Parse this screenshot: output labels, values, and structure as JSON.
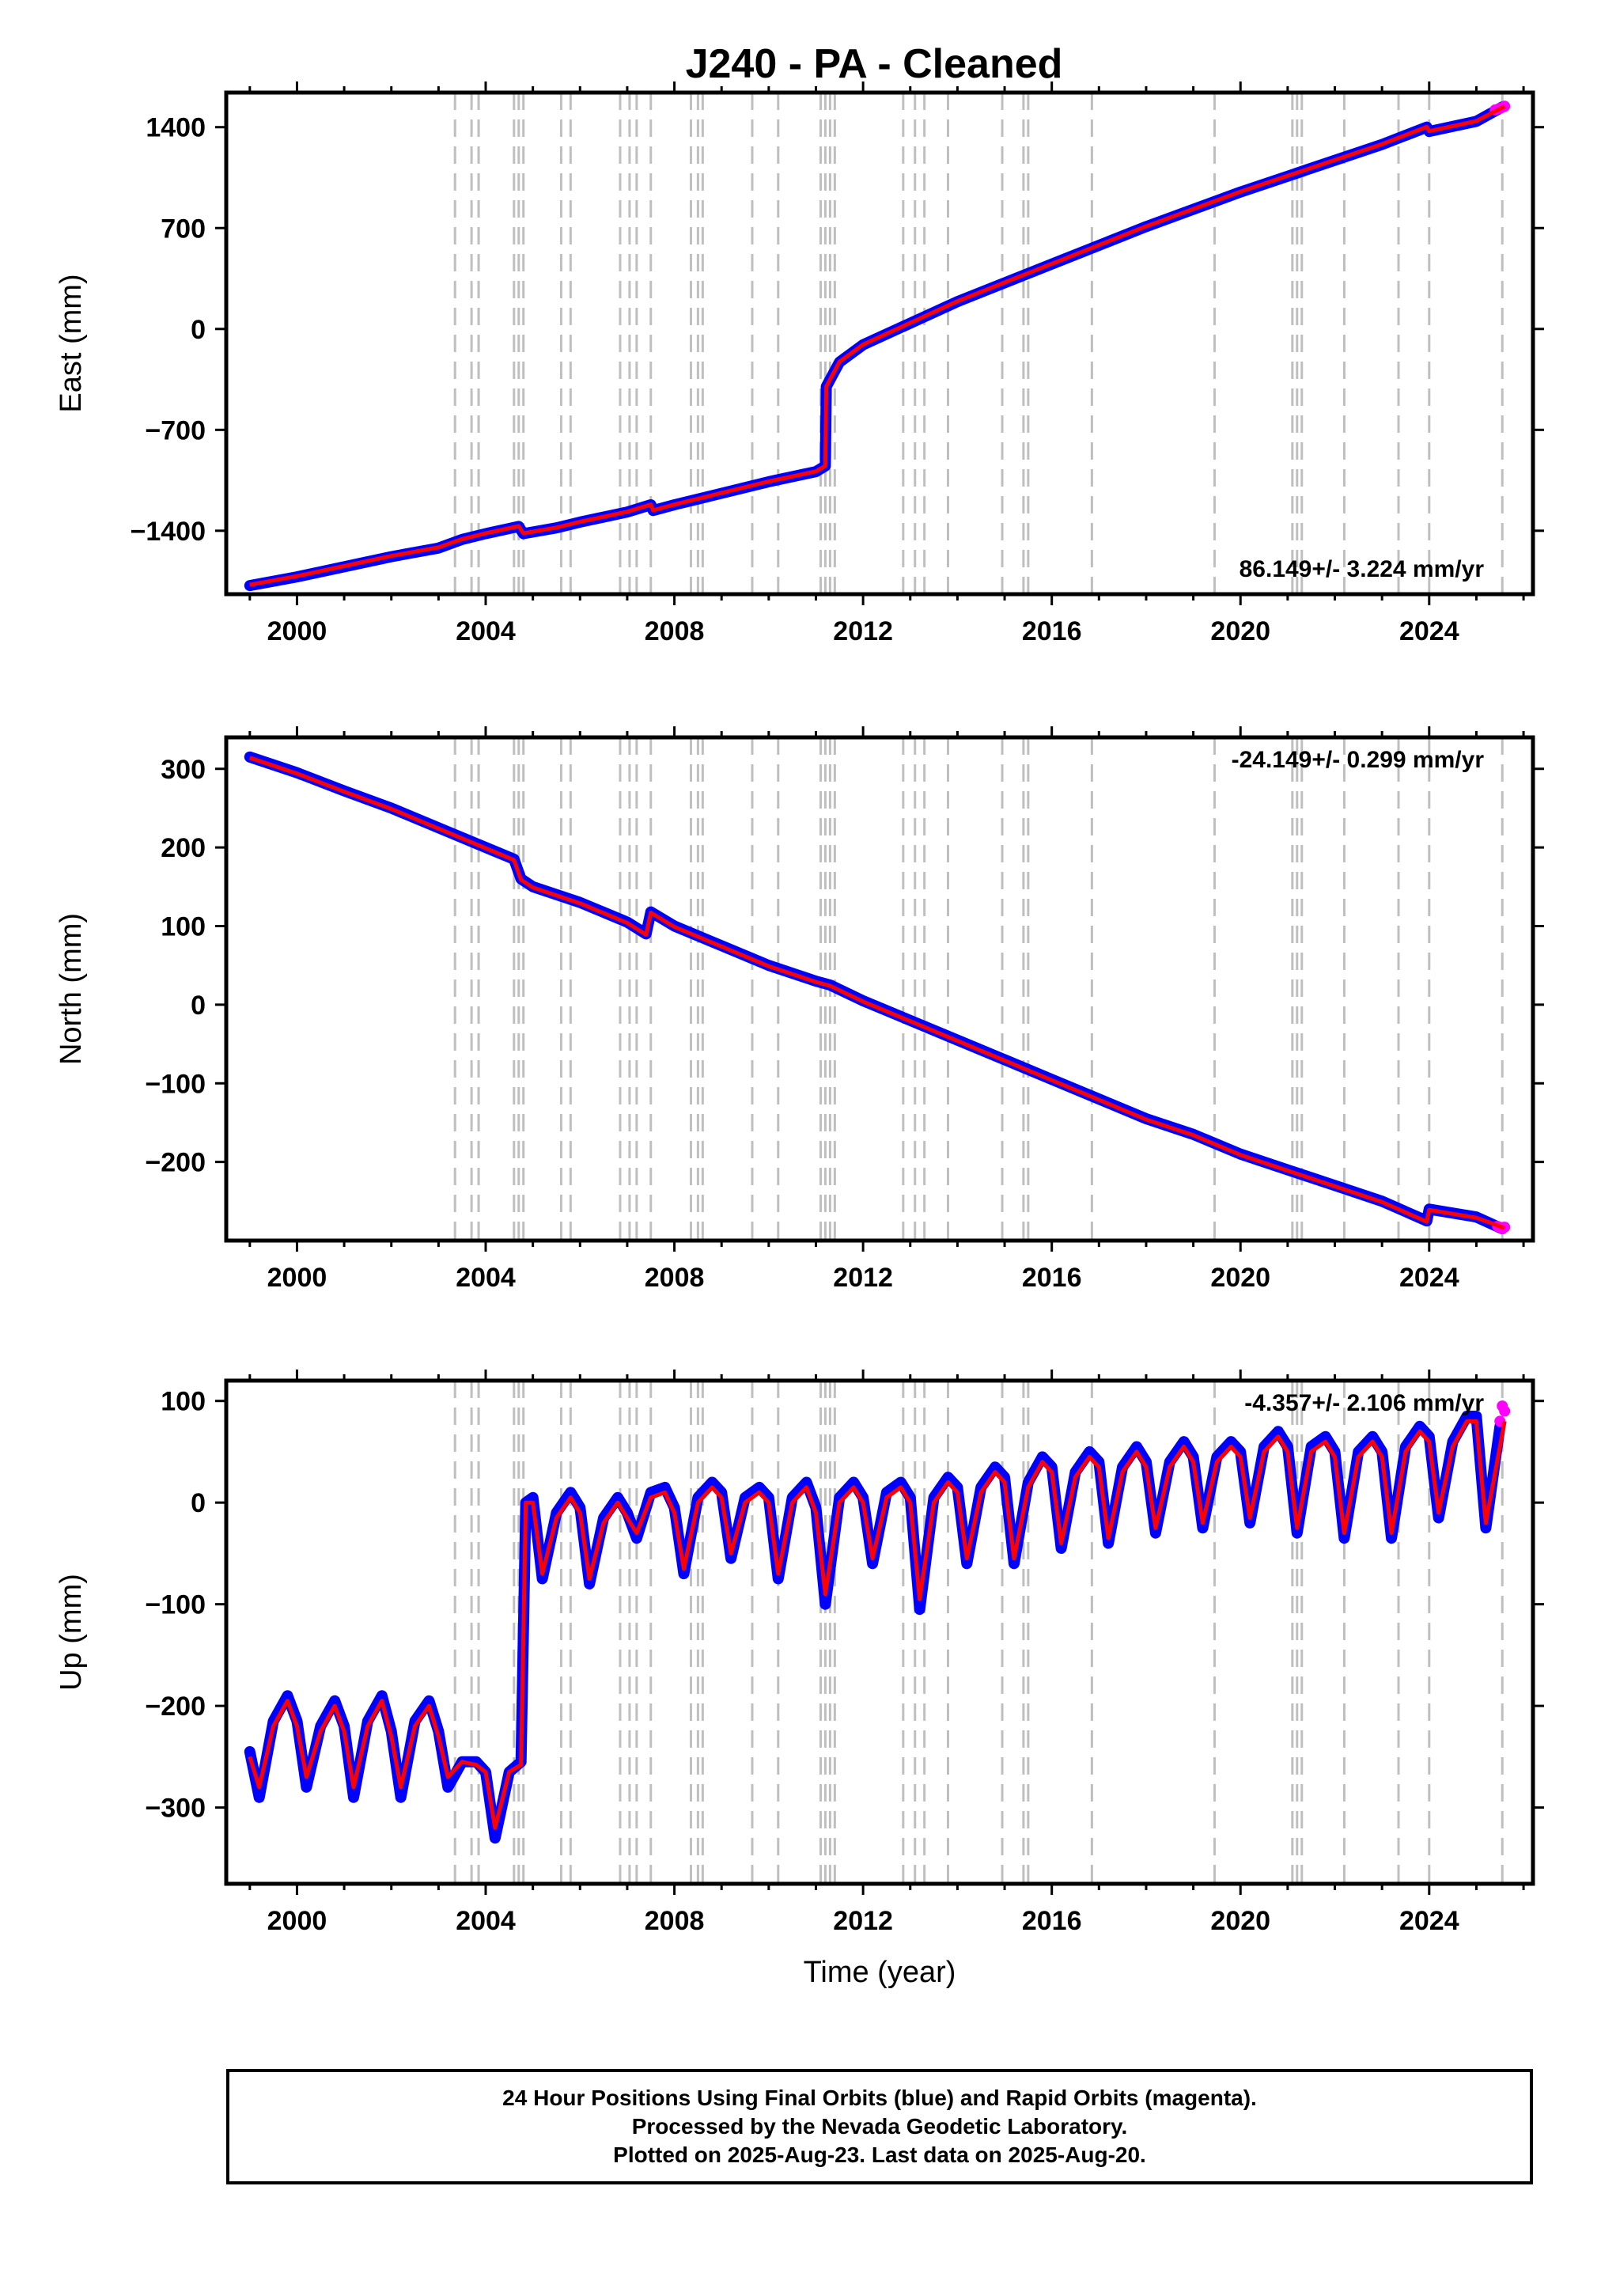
{
  "title": "J240  - PA - Cleaned",
  "x_axis_label": "Time (year)",
  "caption": {
    "line1": "24 Hour Positions Using Final Orbits (blue) and Rapid Orbits (magenta).",
    "line2": "Processed by the Nevada Geodetic Laboratory.",
    "line3": "Plotted on 2025-Aug-23. Last data on 2025-Aug-20."
  },
  "colors": {
    "final_orbits": "#0000ff",
    "rapid_orbits": "#ff00ff",
    "model": "#ff0000",
    "event_lines": "#bfbfbf"
  },
  "chart_data": [
    {
      "type": "scatter",
      "id": "east",
      "ylabel": "East (mm)",
      "rate_text": "86.149+/- 3.224 mm/yr",
      "rate_position": "bottom-right",
      "xlim": [
        1998.5,
        2026.2
      ],
      "ylim": [
        -1840,
        1640
      ],
      "xticks": [
        2000,
        2004,
        2008,
        2012,
        2016,
        2020,
        2024
      ],
      "yticks": [
        -1400,
        -700,
        0,
        700,
        1400
      ],
      "ytick_labels": [
        "−1400",
        "−700",
        "0",
        "700",
        "1400"
      ],
      "grid": false,
      "series": [
        {
          "role": "final",
          "x": [
            1999.0,
            2000.0,
            2001.0,
            2002.0,
            2003.0,
            2003.5,
            2004.0,
            2004.7,
            2004.8,
            2005.5,
            2006.0,
            2007.0,
            2007.5,
            2007.55,
            2008.0,
            2009.0,
            2010.0,
            2011.0,
            2011.2,
            2011.22,
            2011.5,
            2012.0,
            2013.0,
            2014.0,
            2015.0,
            2016.0,
            2017.0,
            2018.0,
            2019.0,
            2020.0,
            2021.0,
            2022.0,
            2023.0,
            2023.95,
            2024.0,
            2025.0,
            2025.55
          ],
          "y": [
            -1780,
            -1720,
            -1650,
            -1580,
            -1520,
            -1460,
            -1420,
            -1370,
            -1420,
            -1380,
            -1340,
            -1270,
            -1220,
            -1260,
            -1220,
            -1140,
            -1060,
            -990,
            -950,
            -400,
            -230,
            -110,
            40,
            190,
            320,
            450,
            580,
            710,
            830,
            950,
            1060,
            1170,
            1280,
            1400,
            1370,
            1440,
            1540
          ]
        },
        {
          "role": "rapid",
          "x": [
            2025.4,
            2025.5,
            2025.6
          ],
          "y": [
            1520,
            1530,
            1545
          ]
        },
        {
          "role": "model",
          "x": [
            1999.0,
            2000.0,
            2001.0,
            2002.0,
            2003.0,
            2003.5,
            2004.0,
            2004.7,
            2004.8,
            2005.5,
            2006.0,
            2007.0,
            2007.5,
            2007.55,
            2008.0,
            2009.0,
            2010.0,
            2011.0,
            2011.2,
            2011.22,
            2011.5,
            2012.0,
            2013.0,
            2014.0,
            2015.0,
            2016.0,
            2017.0,
            2018.0,
            2019.0,
            2020.0,
            2021.0,
            2022.0,
            2023.0,
            2023.95,
            2024.0,
            2025.0,
            2025.6
          ],
          "y": [
            -1775,
            -1715,
            -1645,
            -1575,
            -1515,
            -1458,
            -1418,
            -1368,
            -1418,
            -1378,
            -1338,
            -1268,
            -1218,
            -1258,
            -1218,
            -1138,
            -1058,
            -988,
            -950,
            -400,
            -228,
            -108,
            42,
            192,
            322,
            452,
            582,
            712,
            832,
            952,
            1062,
            1172,
            1282,
            1402,
            1372,
            1442,
            1545
          ]
        }
      ]
    },
    {
      "type": "scatter",
      "id": "north",
      "ylabel": "North (mm)",
      "rate_text": "-24.149+/- 0.299 mm/yr",
      "rate_position": "top-right",
      "xlim": [
        1998.5,
        2026.2
      ],
      "ylim": [
        -300,
        340
      ],
      "xticks": [
        2000,
        2004,
        2008,
        2012,
        2016,
        2020,
        2024
      ],
      "yticks": [
        -200,
        -100,
        0,
        100,
        200,
        300
      ],
      "ytick_labels": [
        "−200",
        "−100",
        "0",
        "100",
        "200",
        "300"
      ],
      "grid": false,
      "series": [
        {
          "role": "final",
          "x": [
            1999.0,
            2000.0,
            2001.0,
            2002.0,
            2003.0,
            2004.0,
            2004.6,
            2004.75,
            2005.0,
            2006.0,
            2007.0,
            2007.4,
            2007.5,
            2008.0,
            2009.0,
            2010.0,
            2011.0,
            2011.3,
            2012.0,
            2013.0,
            2014.0,
            2015.0,
            2016.0,
            2017.0,
            2018.0,
            2019.0,
            2020.0,
            2021.0,
            2022.0,
            2023.0,
            2023.95,
            2024.0,
            2025.0,
            2025.55
          ],
          "y": [
            315,
            295,
            272,
            250,
            225,
            200,
            185,
            160,
            150,
            130,
            105,
            90,
            118,
            100,
            75,
            50,
            30,
            25,
            5,
            -20,
            -45,
            -70,
            -95,
            -120,
            -145,
            -165,
            -190,
            -210,
            -230,
            -250,
            -275,
            -260,
            -270,
            -285
          ]
        },
        {
          "role": "rapid",
          "x": [
            2025.45,
            2025.55,
            2025.6
          ],
          "y": [
            -282,
            -285,
            -283
          ]
        },
        {
          "role": "model",
          "x": [
            1999.0,
            2000.0,
            2001.0,
            2002.0,
            2003.0,
            2004.0,
            2004.6,
            2004.75,
            2005.0,
            2006.0,
            2007.0,
            2007.4,
            2007.5,
            2008.0,
            2009.0,
            2010.0,
            2011.0,
            2011.3,
            2012.0,
            2013.0,
            2014.0,
            2015.0,
            2016.0,
            2017.0,
            2018.0,
            2019.0,
            2020.0,
            2021.0,
            2022.0,
            2023.0,
            2023.95,
            2024.0,
            2025.0,
            2025.6
          ],
          "y": [
            314,
            294,
            271,
            249,
            224,
            199,
            184,
            159,
            149,
            129,
            104,
            89,
            117,
            99,
            74,
            49,
            29,
            24,
            4,
            -21,
            -46,
            -71,
            -96,
            -121,
            -146,
            -166,
            -191,
            -211,
            -231,
            -251,
            -276,
            -261,
            -271,
            -284
          ]
        }
      ]
    },
    {
      "type": "scatter",
      "id": "up",
      "ylabel": "Up (mm)",
      "rate_text": "-4.357+/- 2.106 mm/yr",
      "rate_position": "top-right",
      "xlim": [
        1998.5,
        2026.2
      ],
      "ylim": [
        -375,
        120
      ],
      "xticks": [
        2000,
        2004,
        2008,
        2012,
        2016,
        2020,
        2024
      ],
      "yticks": [
        -300,
        -200,
        -100,
        0,
        100
      ],
      "ytick_labels": [
        "−300",
        "−200",
        "−100",
        "0",
        "100"
      ],
      "grid": false,
      "series": [
        {
          "role": "final",
          "x": [
            1999.0,
            1999.2,
            1999.5,
            1999.8,
            2000.0,
            2000.2,
            2000.5,
            2000.8,
            2001.0,
            2001.2,
            2001.5,
            2001.8,
            2002.0,
            2002.2,
            2002.5,
            2002.8,
            2003.0,
            2003.2,
            2003.5,
            2003.8,
            2004.0,
            2004.2,
            2004.5,
            2004.75,
            2004.85,
            2005.0,
            2005.2,
            2005.5,
            2005.8,
            2006.0,
            2006.2,
            2006.5,
            2006.8,
            2007.0,
            2007.2,
            2007.5,
            2007.8,
            2008.0,
            2008.2,
            2008.5,
            2008.8,
            2009.0,
            2009.2,
            2009.5,
            2009.8,
            2010.0,
            2010.2,
            2010.5,
            2010.8,
            2011.0,
            2011.2,
            2011.5,
            2011.8,
            2012.0,
            2012.2,
            2012.5,
            2012.8,
            2013.0,
            2013.2,
            2013.5,
            2013.8,
            2014.0,
            2014.2,
            2014.5,
            2014.8,
            2015.0,
            2015.2,
            2015.5,
            2015.8,
            2016.0,
            2016.2,
            2016.5,
            2016.8,
            2017.0,
            2017.2,
            2017.5,
            2017.8,
            2018.0,
            2018.2,
            2018.5,
            2018.8,
            2019.0,
            2019.2,
            2019.5,
            2019.8,
            2020.0,
            2020.2,
            2020.5,
            2020.8,
            2021.0,
            2021.2,
            2021.5,
            2021.8,
            2022.0,
            2022.2,
            2022.5,
            2022.8,
            2023.0,
            2023.2,
            2023.5,
            2023.8,
            2024.0,
            2024.2,
            2024.5,
            2024.8,
            2025.0,
            2025.2,
            2025.5
          ],
          "y": [
            -245,
            -290,
            -215,
            -190,
            -215,
            -280,
            -220,
            -195,
            -220,
            -290,
            -215,
            -190,
            -225,
            -290,
            -215,
            -195,
            -225,
            -280,
            -255,
            -255,
            -265,
            -330,
            -265,
            -255,
            0,
            5,
            -75,
            -10,
            10,
            -5,
            -80,
            -15,
            5,
            -10,
            -35,
            10,
            15,
            -5,
            -70,
            5,
            20,
            10,
            -55,
            5,
            15,
            5,
            -75,
            5,
            20,
            -5,
            -100,
            5,
            20,
            5,
            -60,
            10,
            20,
            5,
            -105,
            5,
            25,
            15,
            -60,
            15,
            35,
            25,
            -60,
            20,
            45,
            35,
            -45,
            30,
            50,
            40,
            -40,
            35,
            55,
            40,
            -30,
            40,
            60,
            45,
            -25,
            45,
            60,
            50,
            -20,
            55,
            70,
            55,
            -30,
            55,
            65,
            50,
            -35,
            50,
            65,
            50,
            -35,
            55,
            75,
            65,
            -15,
            60,
            85,
            85,
            -25,
            75
          ]
        },
        {
          "role": "rapid",
          "x": [
            2025.5,
            2025.55,
            2025.6
          ],
          "y": [
            80,
            95,
            90
          ]
        },
        {
          "role": "model",
          "x": [
            1999.0,
            1999.2,
            1999.5,
            1999.8,
            2000.0,
            2000.2,
            2000.5,
            2000.8,
            2001.0,
            2001.2,
            2001.5,
            2001.8,
            2002.0,
            2002.2,
            2002.5,
            2002.8,
            2003.0,
            2003.2,
            2003.5,
            2003.8,
            2004.0,
            2004.2,
            2004.5,
            2004.75,
            2004.85,
            2005.0,
            2005.2,
            2005.5,
            2005.8,
            2006.0,
            2006.2,
            2006.5,
            2006.8,
            2007.0,
            2007.2,
            2007.5,
            2007.8,
            2008.0,
            2008.2,
            2008.5,
            2008.8,
            2009.0,
            2009.2,
            2009.5,
            2009.8,
            2010.0,
            2010.2,
            2010.5,
            2010.8,
            2011.0,
            2011.2,
            2011.5,
            2011.8,
            2012.0,
            2012.2,
            2012.5,
            2012.8,
            2013.0,
            2013.2,
            2013.5,
            2013.8,
            2014.0,
            2014.2,
            2014.5,
            2014.8,
            2015.0,
            2015.2,
            2015.5,
            2015.8,
            2016.0,
            2016.2,
            2016.5,
            2016.8,
            2017.0,
            2017.2,
            2017.5,
            2017.8,
            2018.0,
            2018.2,
            2018.5,
            2018.8,
            2019.0,
            2019.2,
            2019.5,
            2019.8,
            2020.0,
            2020.2,
            2020.5,
            2020.8,
            2021.0,
            2021.2,
            2021.5,
            2021.8,
            2022.0,
            2022.2,
            2022.5,
            2022.8,
            2023.0,
            2023.2,
            2023.5,
            2023.8,
            2024.0,
            2024.2,
            2024.5,
            2024.8,
            2025.0,
            2025.2,
            2025.6
          ],
          "y": [
            -250,
            -280,
            -220,
            -195,
            -220,
            -270,
            -225,
            -200,
            -225,
            -280,
            -220,
            -195,
            -230,
            -280,
            -220,
            -200,
            -230,
            -270,
            -255,
            -258,
            -265,
            -320,
            -265,
            -258,
            0,
            0,
            -70,
            -15,
            5,
            -10,
            -75,
            -20,
            0,
            -15,
            -30,
            5,
            10,
            -10,
            -65,
            0,
            15,
            5,
            -50,
            0,
            10,
            0,
            -70,
            0,
            15,
            -10,
            -90,
            0,
            15,
            0,
            -55,
            5,
            15,
            0,
            -95,
            0,
            20,
            10,
            -55,
            10,
            30,
            20,
            -55,
            15,
            40,
            30,
            -40,
            25,
            45,
            35,
            -35,
            30,
            50,
            35,
            -25,
            35,
            55,
            40,
            -20,
            40,
            55,
            45,
            -15,
            50,
            65,
            50,
            -25,
            50,
            60,
            45,
            -30,
            45,
            60,
            45,
            -30,
            50,
            70,
            60,
            -10,
            55,
            80,
            80,
            -20,
            80
          ]
        }
      ]
    }
  ],
  "event_lines_years": [
    2003.35,
    2003.7,
    2003.85,
    2004.6,
    2004.7,
    2004.8,
    2005.6,
    2005.8,
    2006.85,
    2007.05,
    2007.2,
    2007.5,
    2008.35,
    2008.5,
    2008.6,
    2009.65,
    2010.2,
    2011.1,
    2011.2,
    2011.3,
    2011.4,
    2012.85,
    2013.1,
    2013.3,
    2013.8,
    2014.95,
    2015.4,
    2015.5,
    2016.85,
    2019.45,
    2021.1,
    2021.2,
    2021.3,
    2022.2,
    2023.35,
    2024.0,
    2025.55
  ]
}
